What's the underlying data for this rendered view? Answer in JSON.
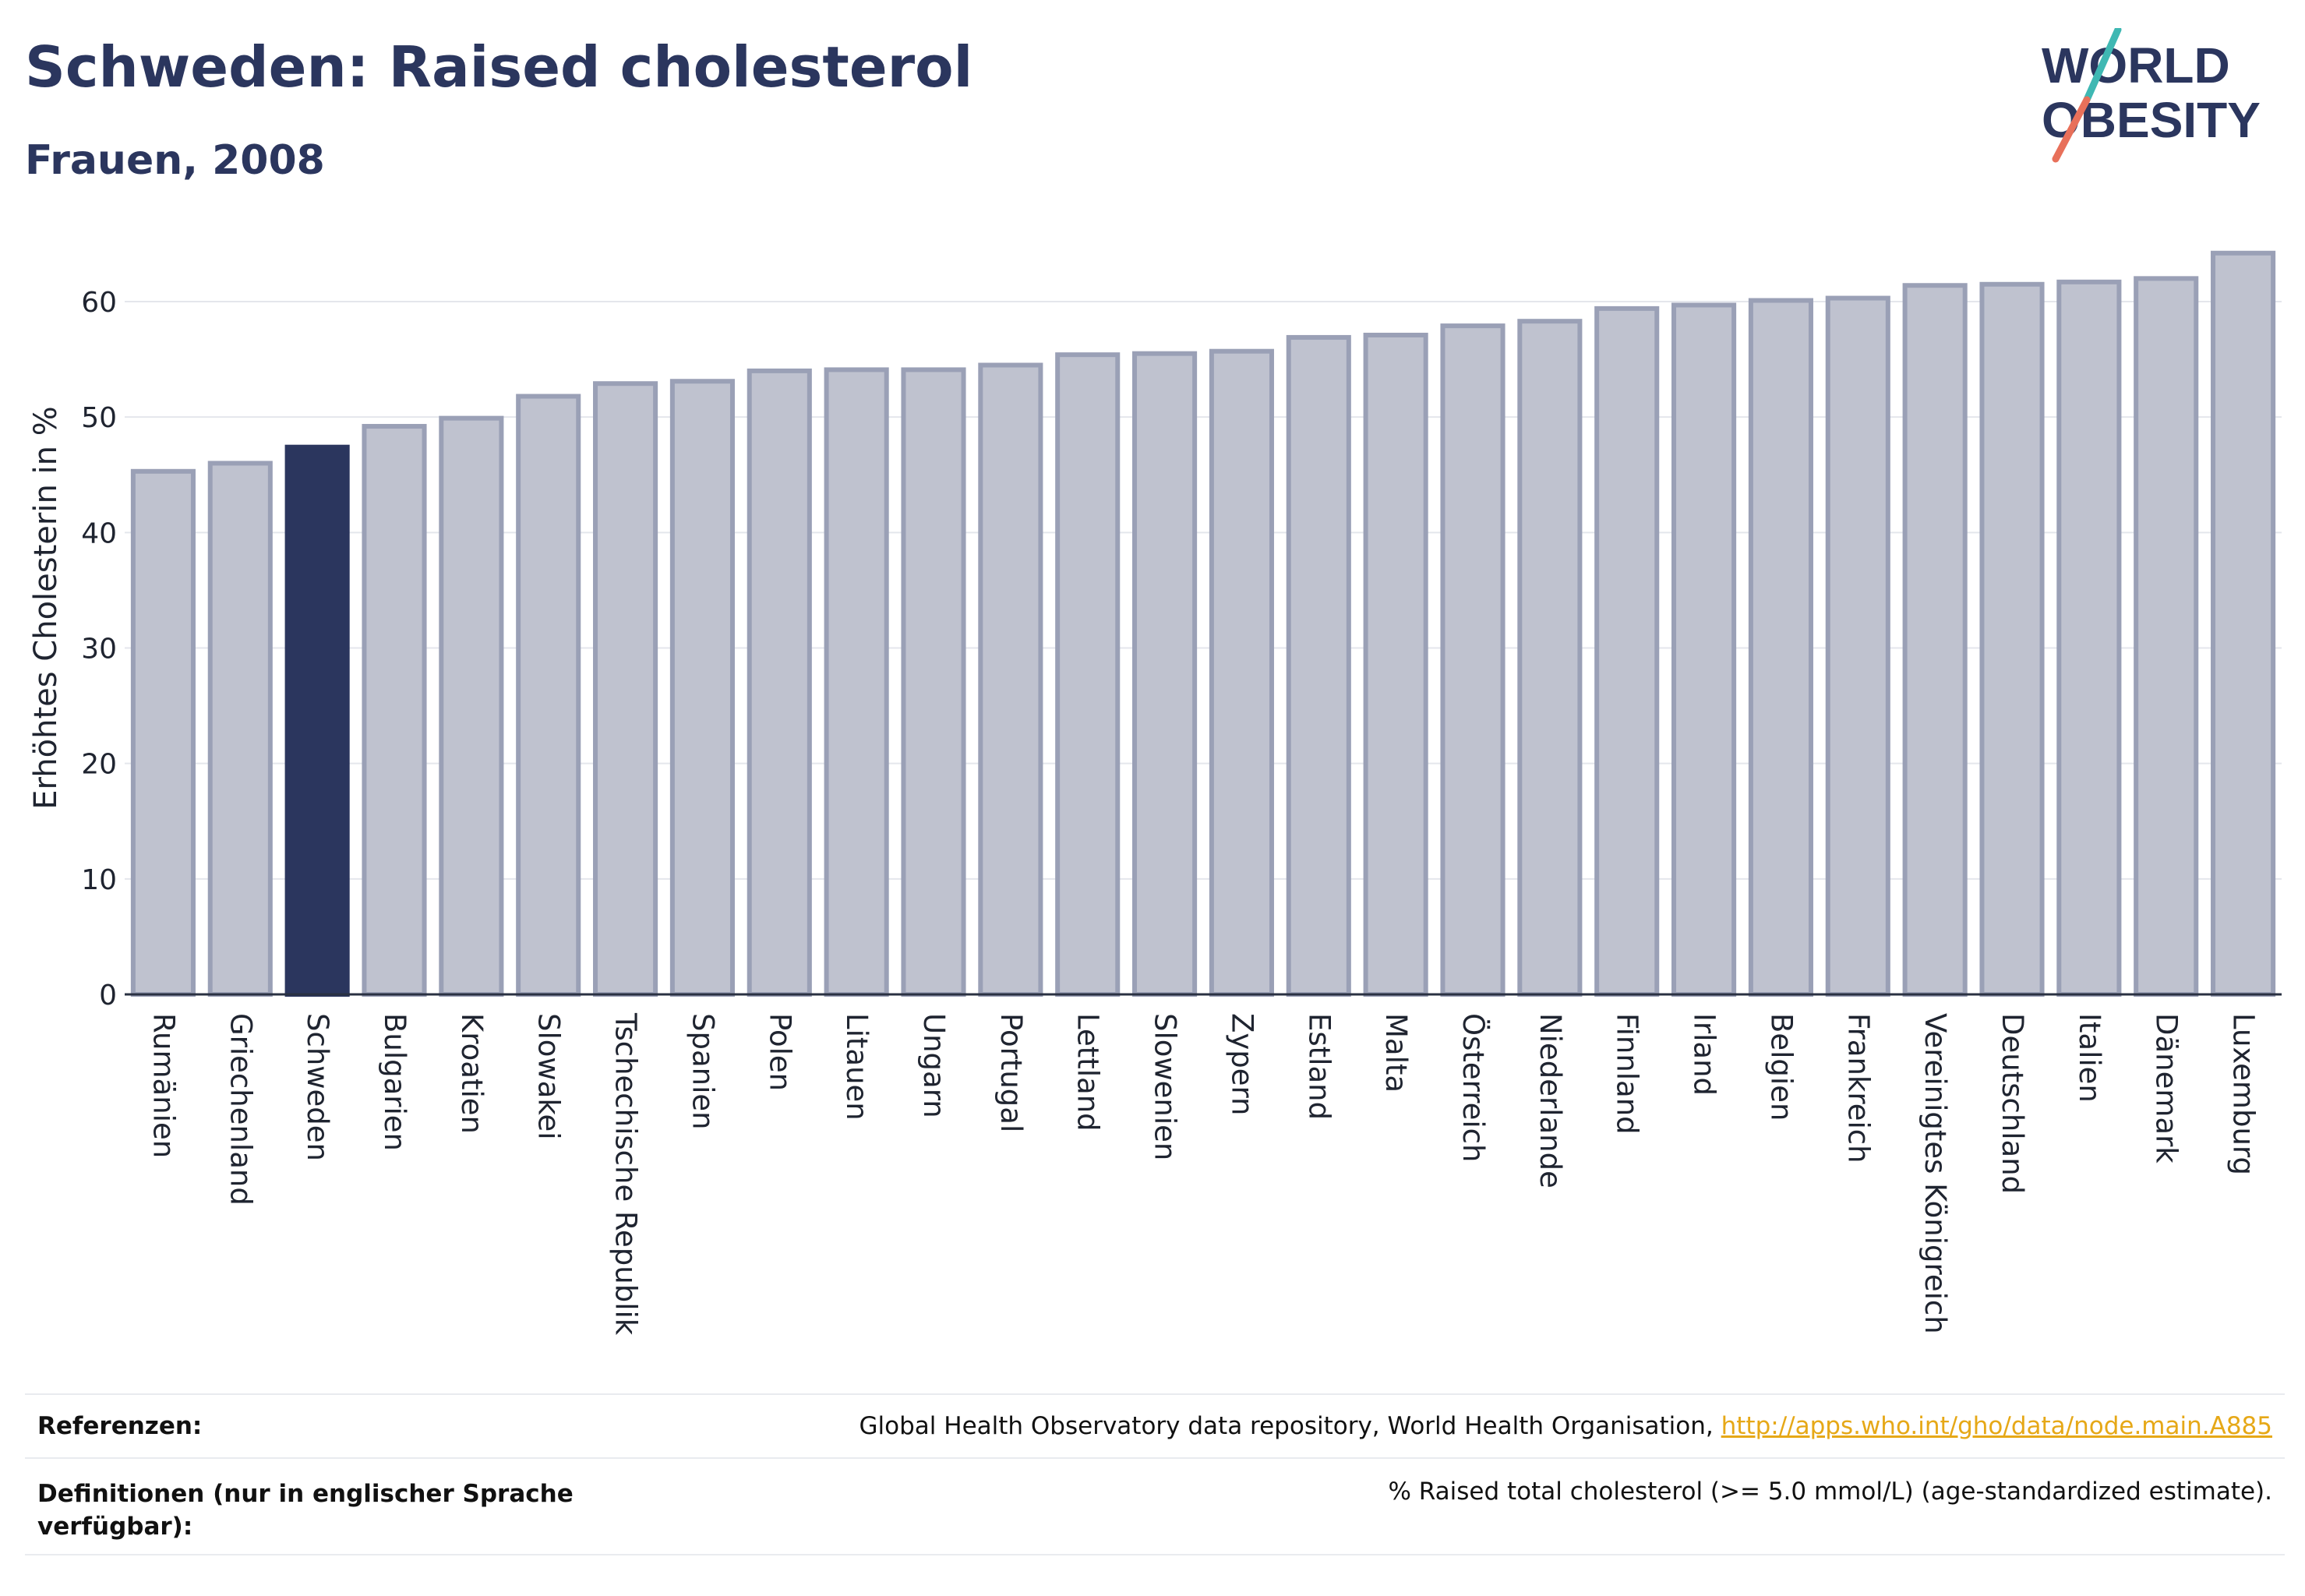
{
  "header": {
    "title": "Schweden: Raised cholesterol",
    "subtitle": "Frauen, 2008"
  },
  "logo": {
    "line1": "WORLD",
    "line2": "OBESITY",
    "colors": {
      "text": "#2b365e",
      "slash_teal": "#3fb8b3",
      "slash_coral": "#e8705a"
    }
  },
  "chart_data": {
    "type": "bar",
    "ylabel": "Erhöhtes Cholesterin in %",
    "ylim": [
      0,
      65
    ],
    "yticks": [
      0,
      10,
      20,
      30,
      40,
      50,
      60
    ],
    "grid": true,
    "highlight": "Schweden",
    "colors": {
      "bar": "#bfc2cf",
      "bar_border": "#9aa0b6",
      "highlight": "#2b365e",
      "grid": "#e4e6ec"
    },
    "categories": [
      "Rumänien",
      "Griechenland",
      "Schweden",
      "Bulgarien",
      "Kroatien",
      "Slowakei",
      "Tschechische Republik",
      "Spanien",
      "Polen",
      "Litauen",
      "Ungarn",
      "Portugal",
      "Lettland",
      "Slowenien",
      "Zypern",
      "Estland",
      "Malta",
      "Österreich",
      "Niederlande",
      "Finnland",
      "Irland",
      "Belgien",
      "Frankreich",
      "Vereinigtes Königreich",
      "Deutschland",
      "Italien",
      "Dänemark",
      "Luxemburg"
    ],
    "values": [
      45.3,
      46.0,
      47.4,
      49.2,
      49.9,
      51.8,
      52.9,
      53.1,
      54.0,
      54.1,
      54.1,
      54.5,
      55.4,
      55.5,
      55.7,
      56.9,
      57.1,
      57.9,
      58.3,
      59.4,
      59.7,
      60.1,
      60.3,
      61.4,
      61.5,
      61.7,
      62.0,
      64.2
    ]
  },
  "footer": {
    "references_label": "Referenzen:",
    "references_text": "Global Health Observatory data repository, World Health Organisation, ",
    "references_link": "http://apps.who.int/gho/data/node.main.A885",
    "definitions_label": "Definitionen (nur in englischer Sprache verfügbar):",
    "definitions_text": "% Raised total cholesterol (>= 5.0 mmol/L) (age-standardized estimate)."
  }
}
